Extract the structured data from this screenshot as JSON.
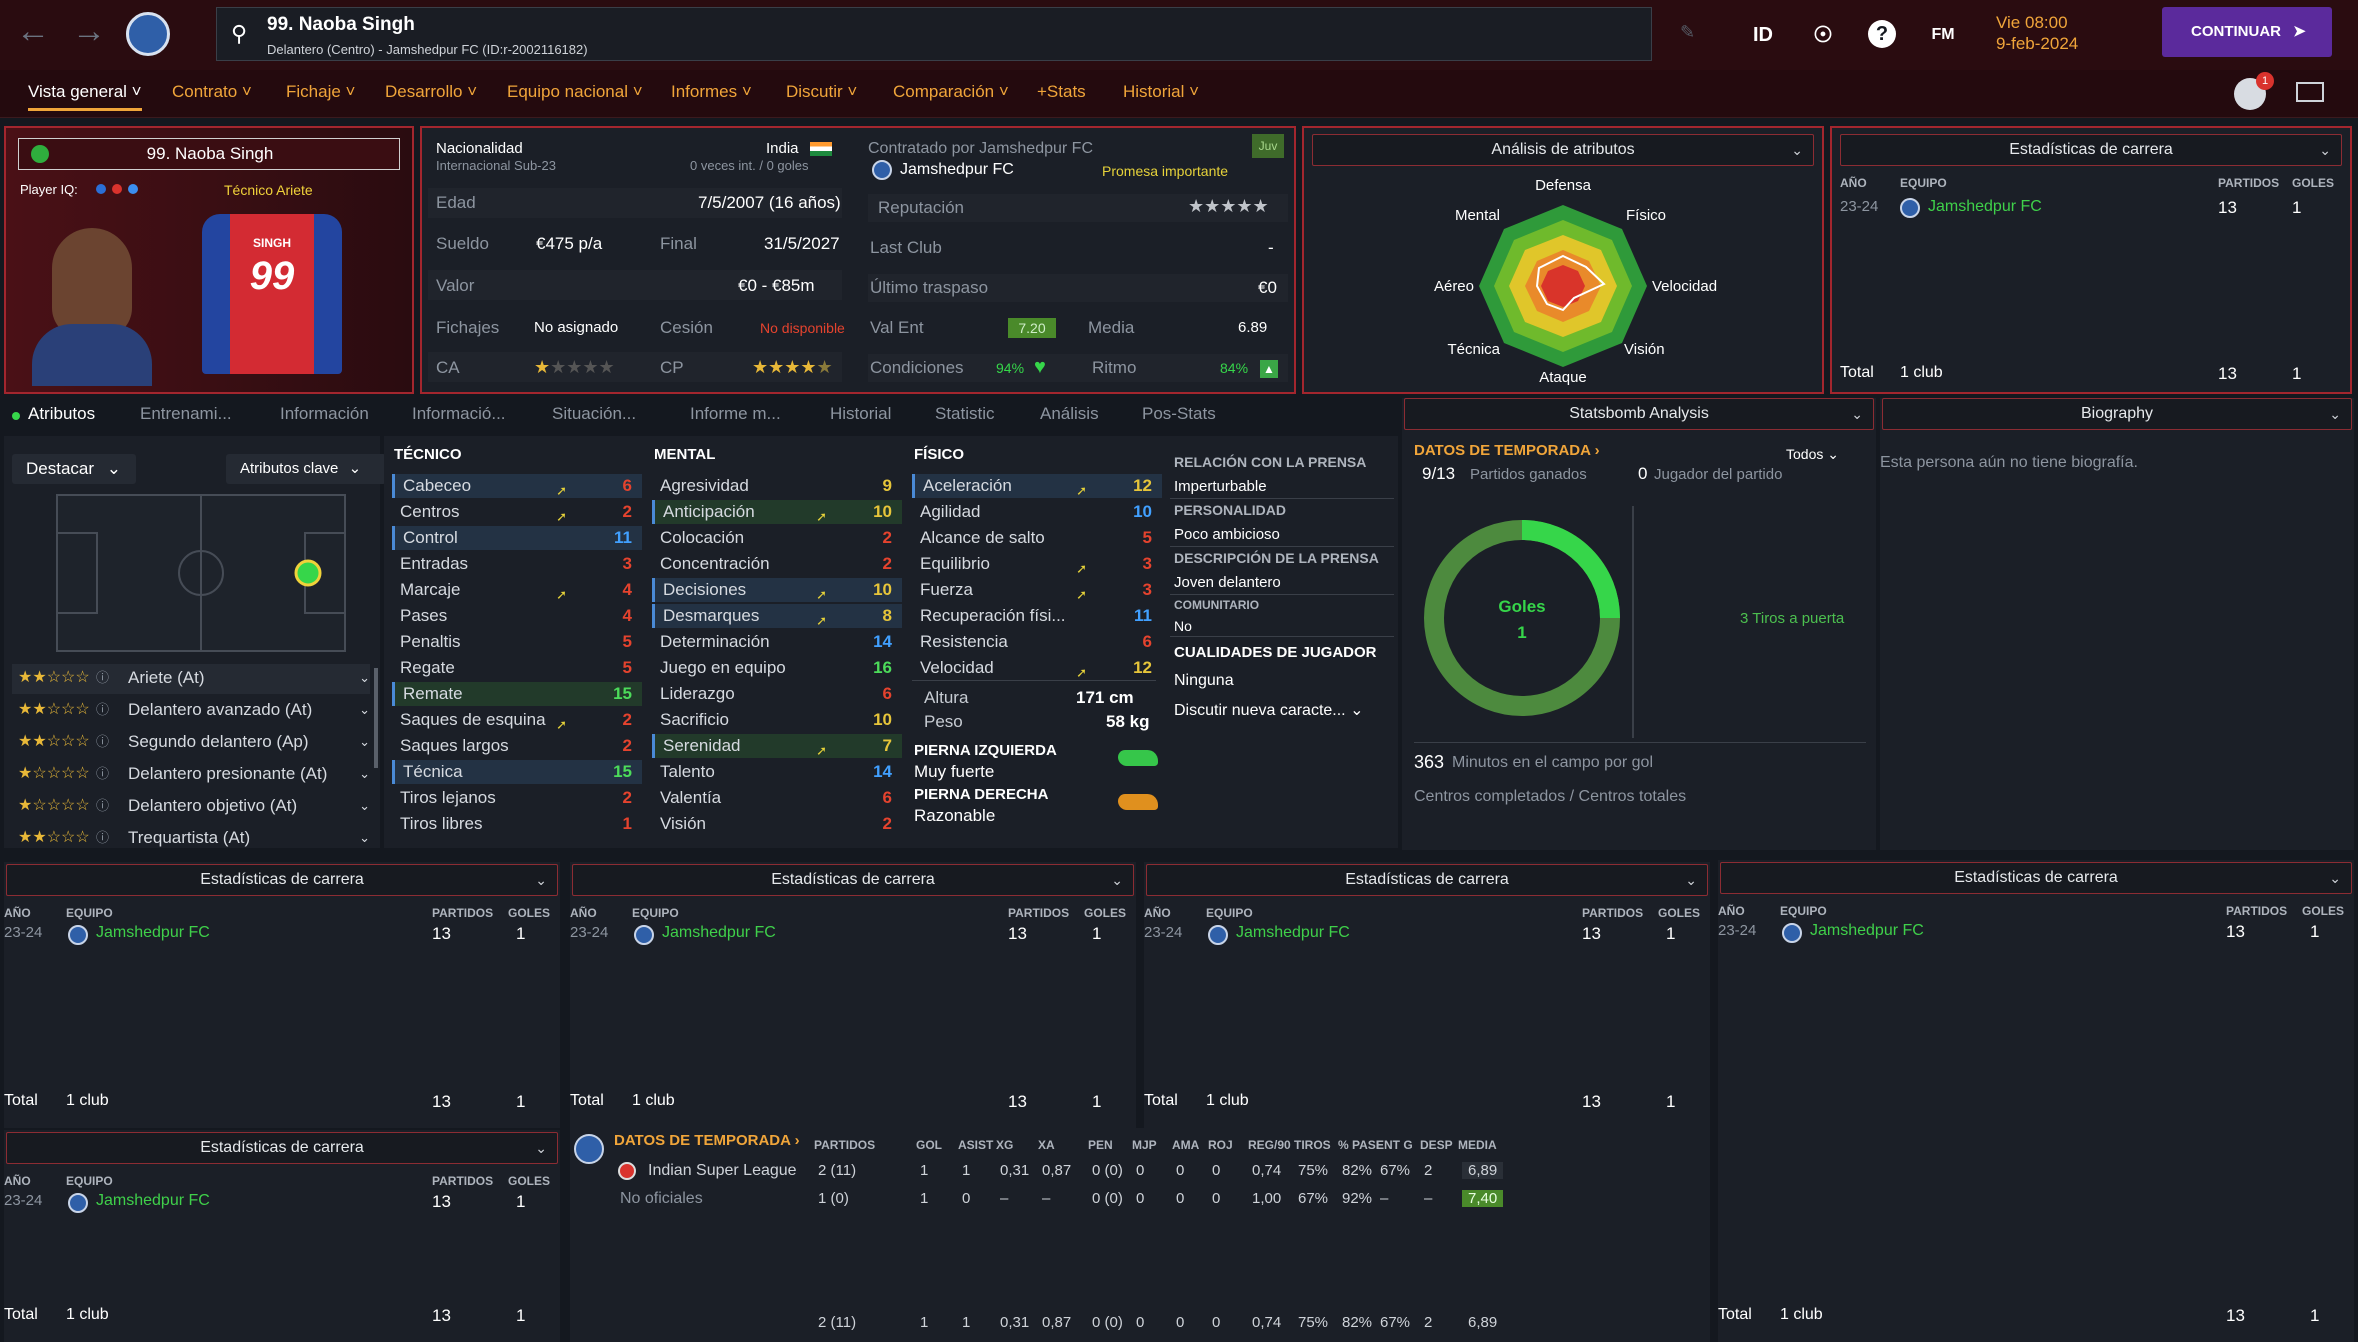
{
  "header": {
    "player_name": "99. Naoba Singh",
    "subtitle": "Delantero (Centro) - Jamshedpur FC (ID:r-2002116182)",
    "id_label": "ID",
    "fm_label": "FM",
    "day_time": "Vie 08:00",
    "date": "9-feb-2024",
    "continue_label": "CONTINUAR",
    "notifications": "1"
  },
  "nav": {
    "items": [
      "Vista general",
      "Contrato",
      "Fichaje",
      "Desarrollo",
      "Equipo nacional",
      "Informes",
      "Discutir",
      "Comparación",
      "+Stats",
      "Historial"
    ]
  },
  "profile": {
    "name": "99. Naoba Singh",
    "player_iq_label": "Player IQ:",
    "role": "Técnico Ariete",
    "shirt_name": "SINGH",
    "shirt_number": "99"
  },
  "info": {
    "nationality_label": "Nacionalidad",
    "nationality": "India",
    "intl_label": "Internacional Sub-23",
    "intl_caps": "0 veces int. / 0 goles",
    "age_label": "Edad",
    "age": "7/5/2007 (16 años)",
    "wage_label": "Sueldo",
    "wage": "€475 p/a",
    "end_label": "Final",
    "end": "31/5/2027",
    "value_label": "Valor",
    "value": "€0 - €85m",
    "transfers_label": "Fichajes",
    "transfers": "No asignado",
    "loan_label": "Cesión",
    "loan": "No disponible",
    "ca_label": "CA",
    "cp_label": "CP",
    "ca_stars": 1.5,
    "cp_stars": 4.5,
    "contracted_label": "Contratado por Jamshedpur FC",
    "club": "Jamshedpur FC",
    "promise": "Promesa importante",
    "juv": "Juv",
    "rep_label": "Reputación",
    "last_club_label": "Last Club",
    "last_club": "-",
    "last_transfer_label": "Último traspaso",
    "last_transfer": "€0",
    "val_ent_label": "Val Ent",
    "val_ent": "7.20",
    "media_label": "Media",
    "media": "6.89",
    "cond_label": "Condiciones",
    "cond": "94%",
    "ritmo_label": "Ritmo",
    "ritmo": "84%"
  },
  "attr_analysis": {
    "title": "Análisis de atributos",
    "labels": [
      "Defensa",
      "Físico",
      "Velocidad",
      "Visión",
      "Ataque",
      "Técnica",
      "Aéreo",
      "Mental"
    ]
  },
  "career_top": {
    "title": "Estadísticas de carrera",
    "headers": [
      "AÑO",
      "EQUIPO",
      "PARTIDOS",
      "GOLES"
    ],
    "year": "23-24",
    "club": "Jamshedpur FC",
    "apps": "13",
    "goals": "1",
    "total_label": "Total",
    "total_clubs": "1 club",
    "total_apps": "13",
    "total_goals": "1"
  },
  "tabs": [
    "Atributos",
    "Entrenami...",
    "Información",
    "Informació...",
    "Situación...",
    "Informe m...",
    "Historial",
    "Statistic",
    "Análisis",
    "Pos-Stats"
  ],
  "roles_panel": {
    "highlight": "Destacar",
    "key_attrs": "Atributos clave",
    "roles": [
      {
        "stars": "★★☆☆☆",
        "name": "Ariete (At)"
      },
      {
        "stars": "★★☆☆☆",
        "name": "Delantero avanzado (At)"
      },
      {
        "stars": "★★☆☆☆",
        "name": "Segundo delantero (Ap)"
      },
      {
        "stars": "★☆☆☆☆",
        "name": "Delantero presionante (At)"
      },
      {
        "stars": "★☆☆☆☆",
        "name": "Delantero objetivo (At)"
      },
      {
        "stars": "★★☆☆☆",
        "name": "Trequartista (At)"
      }
    ]
  },
  "attributes": {
    "tecnico_title": "TÉCNICO",
    "mental_title": "MENTAL",
    "fisico_title": "FÍSICO",
    "tecnico": [
      [
        "Cabeceo",
        "6"
      ],
      [
        "Centros",
        "2"
      ],
      [
        "Control",
        "11"
      ],
      [
        "Entradas",
        "3"
      ],
      [
        "Marcaje",
        "4"
      ],
      [
        "Pases",
        "4"
      ],
      [
        "Penaltis",
        "5"
      ],
      [
        "Regate",
        "5"
      ],
      [
        "Remate",
        "15"
      ],
      [
        "Saques de esquina",
        "2"
      ],
      [
        "Saques largos",
        "2"
      ],
      [
        "Técnica",
        "15"
      ],
      [
        "Tiros lejanos",
        "2"
      ],
      [
        "Tiros libres",
        "1"
      ]
    ],
    "mental": [
      [
        "Agresividad",
        "9"
      ],
      [
        "Anticipación",
        "10"
      ],
      [
        "Colocación",
        "2"
      ],
      [
        "Concentración",
        "2"
      ],
      [
        "Decisiones",
        "10"
      ],
      [
        "Desmarques",
        "8"
      ],
      [
        "Determinación",
        "14"
      ],
      [
        "Juego en equipo",
        "16"
      ],
      [
        "Liderazgo",
        "6"
      ],
      [
        "Sacrificio",
        "10"
      ],
      [
        "Serenidad",
        "7"
      ],
      [
        "Talento",
        "14"
      ],
      [
        "Valentía",
        "6"
      ],
      [
        "Visión",
        "2"
      ]
    ],
    "fisico": [
      [
        "Aceleración",
        "12"
      ],
      [
        "Agilidad",
        "10"
      ],
      [
        "Alcance de salto",
        "5"
      ],
      [
        "Equilibrio",
        "3"
      ],
      [
        "Fuerza",
        "3"
      ],
      [
        "Recuperación físi...",
        "11"
      ],
      [
        "Resistencia",
        "6"
      ],
      [
        "Velocidad",
        "12"
      ]
    ],
    "height_label": "Altura",
    "height": "171 cm",
    "weight_label": "Peso",
    "weight": "58 kg",
    "left_foot_label": "PIERNA IZQUIERDA",
    "left_foot": "Muy fuerte",
    "right_foot_label": "PIERNA DERECHA",
    "right_foot": "Razonable"
  },
  "press": {
    "rel_label": "RELACIÓN CON LA PRENSA",
    "rel": "Imperturbable",
    "pers_label": "PERSONALIDAD",
    "pers": "Poco ambicioso",
    "desc_label": "DESCRIPCIÓN DE LA PRENSA",
    "desc": "Joven delantero",
    "comm_label": "COMUNITARIO",
    "comm": "No",
    "qual_label": "CUALIDADES DE JUGADOR",
    "qual": "Ninguna",
    "discuss": "Discutir nueva caracte..."
  },
  "statsbomb": {
    "title": "Statsbomb Analysis",
    "season": "DATOS DE TEMPORADA",
    "filter": "Todos",
    "won": "9/13",
    "won_label": "Partidos ganados",
    "motm": "0",
    "motm_label": "Jugador del partido",
    "goals_label": "Goles",
    "goals": "1",
    "shots": "3",
    "shots_label": "Tiros a puerta",
    "mins": "363",
    "mins_label": "Minutos en el campo por gol",
    "crosses_label": "Centros completados / Centros totales"
  },
  "bio": {
    "title": "Biography",
    "text": "Esta persona aún no tiene biografía."
  },
  "season_table": {
    "title": "DATOS DE TEMPORADA",
    "headers": [
      "PARTIDOS",
      "GOL",
      "ASIST",
      "XG",
      "XA",
      "PEN",
      "MJP",
      "AMA",
      "ROJ",
      "REG/90",
      "TIROS",
      "% PASE",
      "ENT G",
      "DESP",
      "MEDIA"
    ],
    "rows": [
      {
        "name": "Indian Super League",
        "vals": [
          "2 (11)",
          "1",
          "1",
          "0,31",
          "0,87",
          "0 (0)",
          "0",
          "0",
          "0",
          "0,74",
          "75%",
          "82%",
          "67%",
          "2",
          "6,89"
        ]
      },
      {
        "name": "No oficiales",
        "vals": [
          "1 (0)",
          "1",
          "0",
          "–",
          "–",
          "0 (0)",
          "0",
          "0",
          "0",
          "1,00",
          "67%",
          "92%",
          "–",
          "–",
          "7,40"
        ]
      }
    ],
    "totals": [
      "2 (11)",
      "1",
      "1",
      "0,31",
      "0,87",
      "0 (0)",
      "0",
      "0",
      "0",
      "0,74",
      "75%",
      "82%",
      "67%",
      "2",
      "6,89"
    ]
  },
  "colors": {
    "accent": "#f0a53a",
    "brand": "#5b2a9c",
    "club_green": "#3fd04a",
    "red_border": "#a3262e"
  }
}
